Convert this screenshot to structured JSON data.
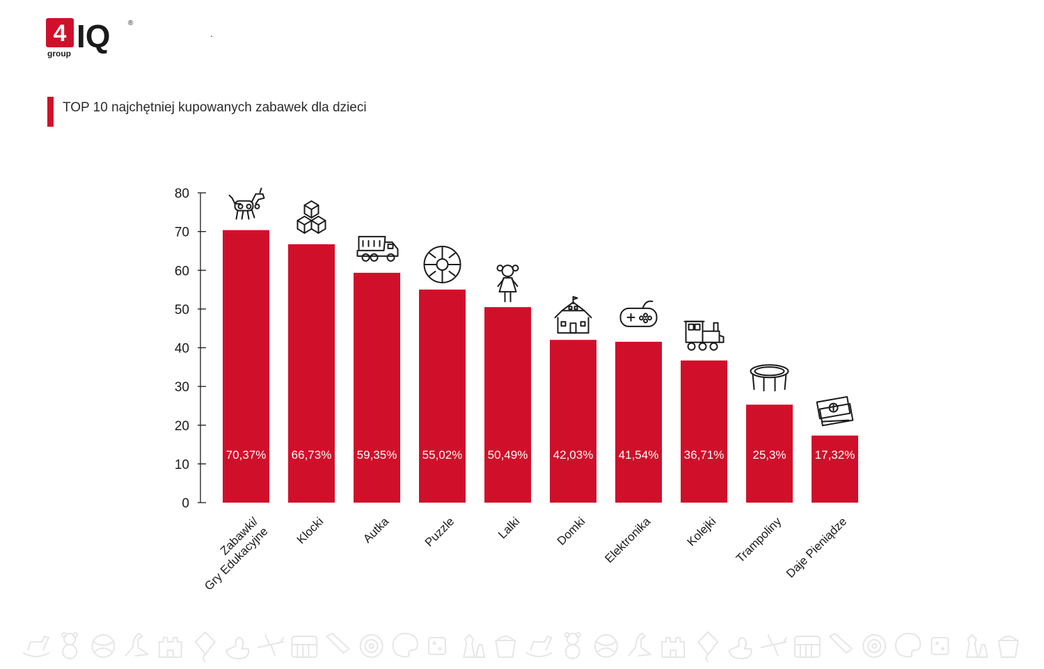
{
  "brand": {
    "logo_number": "4",
    "logo_letters": "IQ",
    "logo_sub": "group",
    "logo_mark": "®",
    "dot": "."
  },
  "title": "TOP 10 najchętniej kupowanych zabawek dla dzieci",
  "colors": {
    "accent": "#d0102a",
    "text": "#1a1a1a",
    "footer_icons": "#e8e8e8"
  },
  "chart_data": {
    "type": "bar",
    "categories": [
      "Zabawki/ Gry Edukacyjne",
      "Klocki",
      "Autka",
      "Puzzle",
      "Lalki",
      "Domki",
      "Elektronika",
      "Kolejki",
      "Trampoliny",
      "Daje Pieniądze"
    ],
    "category_lines": [
      [
        "Zabawki/",
        "Gry Edukacyjne"
      ],
      [
        "Klocki"
      ],
      [
        "Autka"
      ],
      [
        "Puzzle"
      ],
      [
        "Lalki"
      ],
      [
        "Domki"
      ],
      [
        "Elektronika"
      ],
      [
        "Kolejki"
      ],
      [
        "Trampoliny"
      ],
      [
        "Daje Pieniądze"
      ]
    ],
    "values": [
      70.37,
      66.73,
      59.35,
      55.02,
      50.49,
      42.03,
      41.54,
      36.71,
      25.3,
      17.32
    ],
    "labels": [
      "70,37%",
      "66,73%",
      "59,35%",
      "55,02%",
      "50,49%",
      "42,03%",
      "41,54%",
      "36,71%",
      "25,3%",
      "17,32%"
    ],
    "icons": [
      "robot-dog-icon",
      "blocks-icon",
      "dump-truck-icon",
      "puzzle-icon",
      "doll-icon",
      "house-icon",
      "gamepad-icon",
      "train-icon",
      "trampoline-icon",
      "money-icon"
    ],
    "yticks": [
      "0",
      "10",
      "20",
      "30",
      "40",
      "50",
      "60",
      "70",
      "80"
    ],
    "ylim": [
      0,
      80
    ],
    "grid": false,
    "legend": "none"
  },
  "footer_icons": [
    "rocking-horse-icon",
    "teddy-bear-icon",
    "ball-icon",
    "dinosaur-icon",
    "castle-icon",
    "kite-icon",
    "duck-icon",
    "airplane-icon",
    "piano-icon",
    "boomerang-icon",
    "target-icon",
    "palette-icon",
    "dice-icon",
    "chess-icon",
    "sand-bucket-icon"
  ]
}
